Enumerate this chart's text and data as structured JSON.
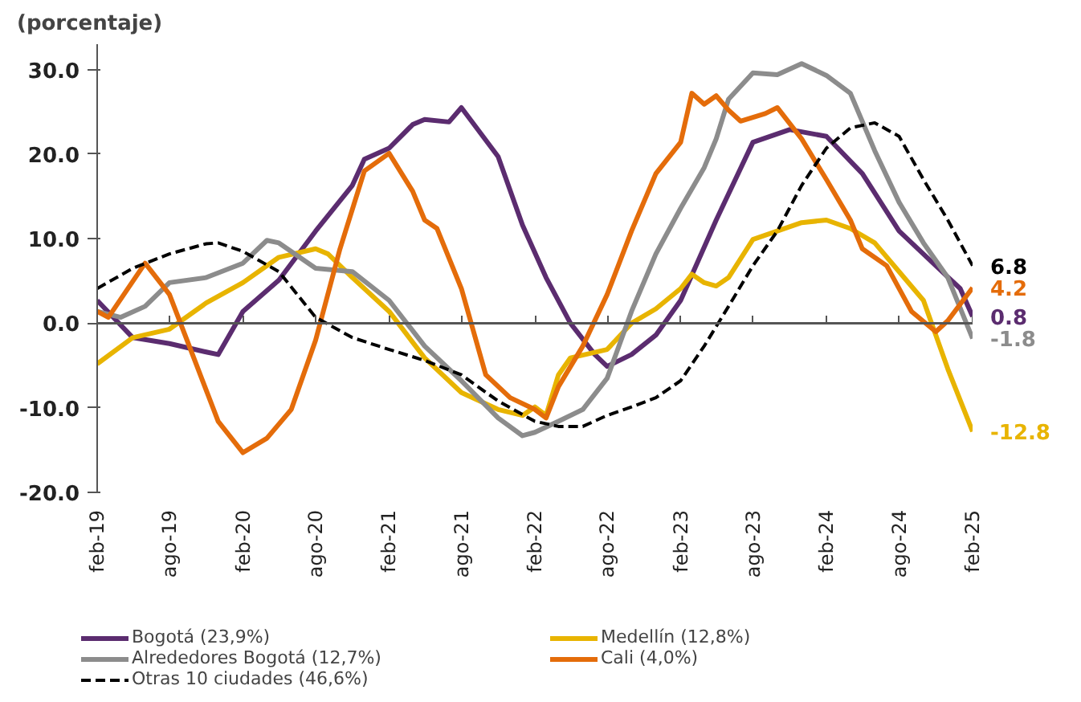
{
  "chart_data": {
    "type": "line",
    "ylabel": "(porcentaje)",
    "xlim": [
      "2019-02",
      "2025-02"
    ],
    "ylim": [
      -20,
      33
    ],
    "xticks": [
      {
        "value": "2019-02",
        "label": "feb-19"
      },
      {
        "value": "2019-08",
        "label": "ago-19"
      },
      {
        "value": "2020-02",
        "label": "feb-20"
      },
      {
        "value": "2020-08",
        "label": "ago-20"
      },
      {
        "value": "2021-02",
        "label": "feb-21"
      },
      {
        "value": "2021-08",
        "label": "ago-21"
      },
      {
        "value": "2022-02",
        "label": "feb-22"
      },
      {
        "value": "2022-08",
        "label": "ago-22"
      },
      {
        "value": "2023-02",
        "label": "feb-23"
      },
      {
        "value": "2023-08",
        "label": "ago-23"
      },
      {
        "value": "2024-02",
        "label": "feb-24"
      },
      {
        "value": "2024-08",
        "label": "ago-24"
      },
      {
        "value": "2025-02",
        "label": "feb-25"
      }
    ],
    "yticks": [
      {
        "value": -20,
        "label": "-20.0"
      },
      {
        "value": -10,
        "label": "-10.0"
      },
      {
        "value": 0,
        "label": "0.0"
      },
      {
        "value": 10,
        "label": "10.0"
      },
      {
        "value": 20,
        "label": "20.0"
      },
      {
        "value": 30,
        "label": "30.0"
      }
    ],
    "grid": false,
    "legend": "bottom",
    "marker": "none",
    "ref_lines": [
      {
        "axis": "y",
        "value": 0,
        "color": "#555555"
      }
    ],
    "series": [
      {
        "name": "Bogotá (23,9%)",
        "color": "#5b2c6f",
        "line_style": "solid",
        "x": [
          "2019-02",
          "2019-05",
          "2019-08",
          "2019-11",
          "2019-12",
          "2020-02",
          "2020-05",
          "2020-08",
          "2020-11",
          "2020-12",
          "2021-02",
          "2021-04",
          "2021-05",
          "2021-07",
          "2021-08",
          "2021-11",
          "2022-01",
          "2022-03",
          "2022-05",
          "2022-07",
          "2022-08",
          "2022-10",
          "2022-12",
          "2023-02",
          "2023-05",
          "2023-08",
          "2023-11",
          "2024-02",
          "2024-05",
          "2024-08",
          "2024-11",
          "2025-01",
          "2025-02"
        ],
        "values": [
          2.7,
          -1.7,
          -2.4,
          -3.4,
          -3.7,
          1.4,
          5.1,
          10.9,
          16.3,
          19.4,
          20.7,
          23.5,
          24.1,
          23.8,
          25.5,
          19.7,
          11.6,
          5.4,
          0,
          -3.7,
          -5.1,
          -3.7,
          -1.4,
          2.7,
          12.2,
          21.4,
          22.9,
          22.1,
          17.7,
          10.9,
          6.8,
          4.1,
          0.8
        ],
        "value_labels": [
          null,
          null,
          null,
          null,
          null,
          null,
          null,
          null,
          null,
          null,
          null,
          null,
          null,
          null,
          null,
          null,
          null,
          null,
          null,
          null,
          null,
          null,
          null,
          null,
          null,
          null,
          null,
          null,
          null,
          null,
          null,
          null,
          "0.8"
        ]
      },
      {
        "name": "Medellín (12,8%)",
        "color": "#e8b400",
        "line_style": "solid",
        "x": [
          "2019-02",
          "2019-05",
          "2019-08",
          "2019-11",
          "2020-02",
          "2020-05",
          "2020-08",
          "2020-09",
          "2020-11",
          "2021-02",
          "2021-05",
          "2021-08",
          "2021-11",
          "2022-01",
          "2022-02",
          "2022-03",
          "2022-04",
          "2022-05",
          "2022-08",
          "2022-10",
          "2022-12",
          "2023-02",
          "2023-03",
          "2023-04",
          "2023-05",
          "2023-06",
          "2023-08",
          "2023-10",
          "2023-12",
          "2024-02",
          "2024-04",
          "2024-06",
          "2024-08",
          "2024-10",
          "2024-12",
          "2025-02"
        ],
        "values": [
          -4.8,
          -1.7,
          -0.7,
          2.4,
          4.8,
          7.8,
          8.8,
          8.2,
          5.4,
          1.4,
          -4.1,
          -8.2,
          -10.2,
          -10.9,
          -9.9,
          -10.9,
          -6.1,
          -4.1,
          -3.1,
          0,
          1.7,
          4.1,
          5.8,
          4.8,
          4.4,
          5.4,
          9.9,
          10.9,
          11.9,
          12.2,
          11.2,
          9.5,
          6.1,
          2.7,
          -5.4,
          -12.8
        ],
        "value_labels": [
          null,
          null,
          null,
          null,
          null,
          null,
          null,
          null,
          null,
          null,
          null,
          null,
          null,
          null,
          null,
          null,
          null,
          null,
          null,
          null,
          null,
          null,
          null,
          null,
          null,
          null,
          null,
          null,
          null,
          null,
          null,
          null,
          null,
          null,
          null,
          "-12.8"
        ]
      },
      {
        "name": "Alrededores Bogotá (12,7%)",
        "color": "#8c8c8c",
        "line_style": "solid",
        "x": [
          "2019-02",
          "2019-04",
          "2019-06",
          "2019-08",
          "2019-11",
          "2020-02",
          "2020-04",
          "2020-05",
          "2020-08",
          "2020-11",
          "2021-02",
          "2021-05",
          "2021-08",
          "2021-11",
          "2022-01",
          "2022-02",
          "2022-04",
          "2022-06",
          "2022-08",
          "2022-10",
          "2022-12",
          "2023-02",
          "2023-04",
          "2023-05",
          "2023-06",
          "2023-08",
          "2023-10",
          "2023-12",
          "2024-02",
          "2024-04",
          "2024-06",
          "2024-08",
          "2024-10",
          "2024-12",
          "2025-02"
        ],
        "values": [
          1.4,
          0.7,
          2.0,
          4.8,
          5.4,
          7.1,
          9.8,
          9.5,
          6.5,
          6.1,
          2.7,
          -2.7,
          -6.8,
          -11.2,
          -13.3,
          -12.9,
          -11.6,
          -10.2,
          -6.5,
          1.4,
          8.2,
          13.6,
          18.4,
          21.8,
          26.5,
          29.6,
          29.4,
          30.7,
          29.3,
          27.2,
          20.4,
          14.3,
          9.5,
          5.4,
          -1.8
        ],
        "value_labels": [
          null,
          null,
          null,
          null,
          null,
          null,
          null,
          null,
          null,
          null,
          null,
          null,
          null,
          null,
          null,
          null,
          null,
          null,
          null,
          null,
          null,
          null,
          null,
          null,
          null,
          null,
          null,
          null,
          null,
          null,
          null,
          null,
          null,
          null,
          "-1.8"
        ]
      },
      {
        "name": "Cali (4,0%)",
        "color": "#e46c0a",
        "line_style": "solid",
        "x": [
          "2019-02",
          "2019-03",
          "2019-06",
          "2019-08",
          "2019-10",
          "2019-12",
          "2020-02",
          "2020-04",
          "2020-06",
          "2020-08",
          "2020-10",
          "2020-12",
          "2021-02",
          "2021-04",
          "2021-05",
          "2021-06",
          "2021-08",
          "2021-10",
          "2021-12",
          "2022-02",
          "2022-03",
          "2022-04",
          "2022-06",
          "2022-08",
          "2022-10",
          "2022-12",
          "2023-02",
          "2023-03",
          "2023-04",
          "2023-05",
          "2023-06",
          "2023-07",
          "2023-09",
          "2023-10",
          "2023-12",
          "2024-02",
          "2024-04",
          "2024-05",
          "2024-07",
          "2024-09",
          "2024-11",
          "2024-12",
          "2025-02"
        ],
        "values": [
          1.4,
          0.7,
          7.1,
          3.4,
          -4.1,
          -11.6,
          -15.3,
          -13.6,
          -10.2,
          -2.0,
          8.8,
          18.0,
          20.1,
          15.6,
          12.2,
          11.2,
          4.1,
          -6.1,
          -8.8,
          -10.2,
          -11.2,
          -7.5,
          -2.7,
          3.4,
          10.9,
          17.7,
          21.4,
          27.2,
          25.9,
          26.9,
          25.2,
          23.9,
          24.8,
          25.5,
          21.8,
          17.0,
          12.2,
          8.8,
          6.8,
          1.4,
          -1.0,
          0.3,
          4.2
        ],
        "value_labels": [
          null,
          null,
          null,
          null,
          null,
          null,
          null,
          null,
          null,
          null,
          null,
          null,
          null,
          null,
          null,
          null,
          null,
          null,
          null,
          null,
          null,
          null,
          null,
          null,
          null,
          null,
          null,
          null,
          null,
          null,
          null,
          null,
          null,
          null,
          null,
          null,
          null,
          null,
          null,
          null,
          null,
          null,
          "4.2"
        ]
      },
      {
        "name": "Otras 10 ciudades (46,6%)",
        "color": "#000000",
        "line_style": "dashed",
        "x": [
          "2019-02",
          "2019-05",
          "2019-08",
          "2019-11",
          "2019-12",
          "2020-02",
          "2020-05",
          "2020-08",
          "2020-11",
          "2021-02",
          "2021-05",
          "2021-08",
          "2021-11",
          "2022-02",
          "2022-04",
          "2022-06",
          "2022-08",
          "2022-10",
          "2022-12",
          "2023-02",
          "2023-04",
          "2023-06",
          "2023-08",
          "2023-10",
          "2023-12",
          "2024-02",
          "2024-04",
          "2024-06",
          "2024-08",
          "2024-10",
          "2024-12",
          "2025-02"
        ],
        "values": [
          4.1,
          6.5,
          8.2,
          9.4,
          9.5,
          8.5,
          6.1,
          0.7,
          -1.7,
          -3.1,
          -4.4,
          -6.1,
          -9.2,
          -11.6,
          -12.2,
          -12.2,
          -10.9,
          -9.9,
          -8.8,
          -6.8,
          -2.7,
          2.0,
          6.8,
          10.9,
          16.3,
          20.7,
          23.1,
          23.7,
          22.1,
          17.0,
          12.2,
          6.8
        ],
        "value_labels": [
          null,
          null,
          null,
          null,
          null,
          null,
          null,
          null,
          null,
          null,
          null,
          null,
          null,
          null,
          null,
          null,
          null,
          null,
          null,
          null,
          null,
          null,
          null,
          null,
          null,
          null,
          null,
          null,
          null,
          null,
          null,
          "6.8"
        ]
      }
    ]
  }
}
